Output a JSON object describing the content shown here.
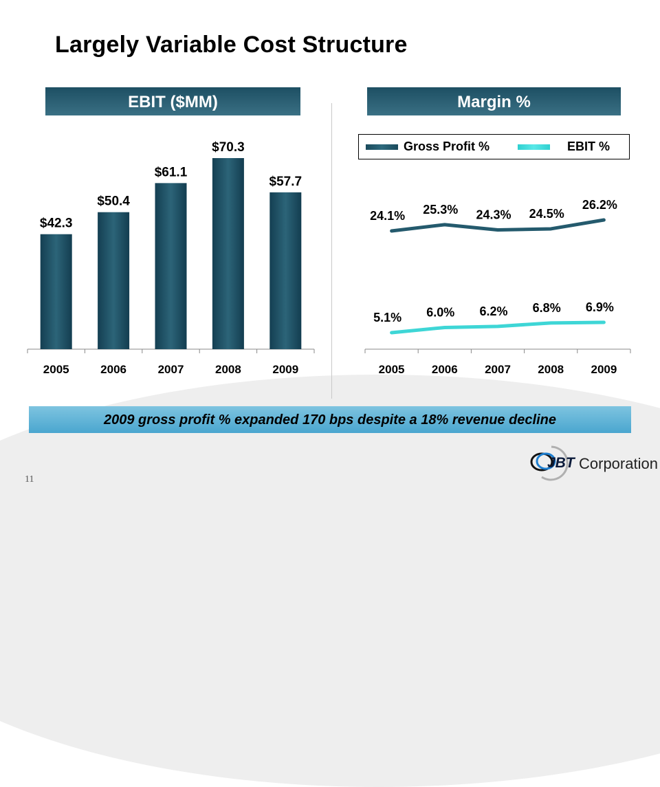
{
  "slide": {
    "title": "Largely Variable Cost Structure",
    "page_number": "11",
    "callout": "2009 gross profit % expanded 170 bps despite a 18% revenue decline",
    "logo_mark": "JBT",
    "logo_text": "Corporation"
  },
  "colors": {
    "bar": "#1e5266",
    "gross_profit_line": "#245a6d",
    "ebit_line": "#3ed6d6",
    "header_bg": "#2a6275",
    "callout_bg": "#5ab0d6"
  },
  "chart_data": [
    {
      "type": "bar",
      "title": "EBIT ($MM)",
      "categories": [
        "2005",
        "2006",
        "2007",
        "2008",
        "2009"
      ],
      "values": [
        42.3,
        50.4,
        61.1,
        70.3,
        57.7
      ],
      "labels": [
        "$42.3",
        "$50.4",
        "$61.1",
        "$70.3",
        "$57.7"
      ],
      "xlabel": "",
      "ylabel": "",
      "ylim": [
        0,
        80
      ],
      "grid": false
    },
    {
      "type": "line",
      "title": "Margin %",
      "categories": [
        "2005",
        "2006",
        "2007",
        "2008",
        "2009"
      ],
      "series": [
        {
          "name": "Gross Profit %",
          "values": [
            24.1,
            25.3,
            24.3,
            24.5,
            26.2
          ],
          "labels": [
            "24.1%",
            "25.3%",
            "24.3%",
            "24.5%",
            "26.2%"
          ]
        },
        {
          "name": "EBIT %",
          "values": [
            5.1,
            6.0,
            6.2,
            6.8,
            6.9
          ],
          "labels": [
            "5.1%",
            "6.0%",
            "6.2%",
            "6.8%",
            "6.9%"
          ]
        }
      ],
      "legend_position": "top",
      "grid": false
    }
  ]
}
